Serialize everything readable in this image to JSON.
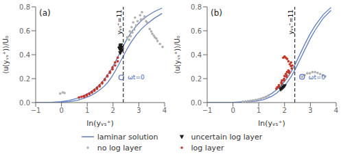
{
  "chart_data": [
    {
      "type": "scatter",
      "title": "(a)",
      "x_label": "ln(yᵥₛ⁺)",
      "y_label": "⟨u(yᵥₛ⁺)⟩/U₀",
      "xlim": [
        -1,
        4
      ],
      "ylim": [
        0,
        0.8
      ],
      "xticks": [
        {
          "value": -1,
          "label": "−1"
        },
        0,
        1,
        2,
        3,
        4
      ],
      "yticks": [
        {
          "value": 0,
          "label": "0.0"
        },
        0.2,
        0.4,
        0.6,
        0.8
      ],
      "grid": false,
      "legend": "bottom",
      "series": [
        {
          "name": "laminar solution",
          "type": "line",
          "color": "#5b7ec7",
          "line_style": "solid",
          "x": [
            -1.0,
            -0.5,
            0.0,
            0.3,
            0.6,
            0.9,
            1.1,
            1.3,
            1.5,
            1.65,
            1.8,
            1.95,
            2.1,
            2.25,
            2.4,
            2.55,
            2.7,
            2.9,
            3.1,
            3.3,
            3.6,
            3.9
          ],
          "values": [
            0.0,
            0.0,
            0.008,
            0.018,
            0.035,
            0.062,
            0.085,
            0.115,
            0.155,
            0.19,
            0.235,
            0.285,
            0.345,
            0.41,
            0.475,
            0.535,
            0.585,
            0.64,
            0.685,
            0.72,
            0.76,
            0.79
          ]
        },
        {
          "name": "laminar solution",
          "type": "line",
          "color": "#5b7ec7",
          "line_style": "solid",
          "x": [
            -1.0,
            -0.5,
            0.0,
            0.3,
            0.6,
            0.9,
            1.1,
            1.3,
            1.5,
            1.65,
            1.8,
            1.95,
            2.1,
            2.25,
            2.4,
            2.55,
            2.7,
            2.9,
            3.1,
            3.3,
            3.6,
            3.9
          ],
          "values": [
            0.0,
            0.0,
            0.003,
            0.008,
            0.018,
            0.038,
            0.055,
            0.078,
            0.108,
            0.135,
            0.17,
            0.215,
            0.27,
            0.33,
            0.39,
            0.45,
            0.505,
            0.565,
            0.615,
            0.655,
            0.705,
            0.745
          ]
        },
        {
          "name": "no log layer",
          "type": "scatter",
          "color": "#b0b0b0",
          "marker": "circle",
          "x": [
            -0.05,
            0.05,
            0.12,
            0.68,
            0.78,
            2.55,
            2.65,
            2.72,
            2.78,
            2.85,
            2.95,
            3.05,
            3.12,
            3.22,
            3.32,
            3.42,
            3.52,
            3.62,
            3.72,
            3.82,
            3.92,
            2.62,
            2.68,
            2.75,
            2.82,
            2.9,
            3.08,
            3.18,
            3.28,
            3.48,
            3.58,
            3.68
          ],
          "values": [
            0.075,
            0.085,
            0.08,
            0.042,
            0.048,
            0.545,
            0.595,
            0.63,
            0.67,
            0.71,
            0.68,
            0.73,
            0.755,
            0.72,
            0.67,
            0.615,
            0.575,
            0.545,
            0.515,
            0.49,
            0.465,
            0.525,
            0.555,
            0.585,
            0.61,
            0.645,
            0.695,
            0.7,
            0.68,
            0.595,
            0.56,
            0.535
          ]
        },
        {
          "name": "uncertain log layer",
          "type": "scatter",
          "color": "#1a1a1a",
          "marker": "triangle_down",
          "x": [
            2.28,
            2.3,
            2.26,
            2.32,
            2.28,
            2.25,
            2.35,
            2.3
          ],
          "values": [
            0.415,
            0.435,
            0.455,
            0.46,
            0.47,
            0.45,
            0.44,
            0.48
          ]
        },
        {
          "name": "log layer",
          "type": "scatter",
          "color": "#cc3322",
          "marker": "circle",
          "x": [
            0.68,
            0.78,
            0.88,
            0.98,
            1.08,
            1.18,
            1.28,
            1.38,
            1.48,
            1.58,
            1.68,
            1.78,
            1.88,
            1.98,
            2.08,
            2.18,
            2.28,
            2.18,
            2.08,
            1.98,
            1.88,
            1.78,
            1.68,
            1.58,
            1.48,
            1.38,
            1.28,
            1.18,
            1.08,
            0.98,
            0.88
          ],
          "values": [
            0.042,
            0.048,
            0.055,
            0.065,
            0.076,
            0.09,
            0.107,
            0.125,
            0.145,
            0.168,
            0.195,
            0.225,
            0.258,
            0.295,
            0.335,
            0.375,
            0.415,
            0.345,
            0.31,
            0.278,
            0.248,
            0.218,
            0.188,
            0.16,
            0.135,
            0.115,
            0.098,
            0.083,
            0.07,
            0.058,
            0.048
          ]
        }
      ],
      "annotations": [
        {
          "type": "vline",
          "x": 2.398,
          "text": "yᵥₛ⁺=11",
          "color": "#000000",
          "line_style": "dashed"
        },
        {
          "type": "point",
          "x": 2.32,
          "y": 0.21,
          "text": "ωt=0",
          "color": "#4466cc",
          "marker": "open_circle"
        }
      ]
    },
    {
      "type": "scatter",
      "title": "(b)",
      "x_label": "ln(yᵥₛ⁺)",
      "y_label": "⟨u(yᵥₛ⁺)⟩/U₀",
      "xlim": [
        -1,
        4
      ],
      "ylim": [
        0,
        0.8
      ],
      "xticks": [
        {
          "value": -1,
          "label": "−1"
        },
        0,
        1,
        2,
        3,
        4
      ],
      "yticks": [
        {
          "value": 0,
          "label": "0.0"
        },
        0.2,
        0.4,
        0.6,
        0.8
      ],
      "grid": false,
      "legend": "bottom",
      "series": [
        {
          "name": "laminar solution",
          "type": "line",
          "color": "#5b7ec7",
          "line_style": "solid",
          "x": [
            -1.0,
            -0.5,
            0.0,
            0.5,
            0.9,
            1.2,
            1.5,
            1.7,
            1.9,
            2.1,
            2.25,
            2.4,
            2.6,
            2.8,
            3.0,
            3.2,
            3.5,
            3.8
          ],
          "values": [
            0.0,
            0.0,
            0.002,
            0.008,
            0.022,
            0.042,
            0.075,
            0.108,
            0.15,
            0.205,
            0.255,
            0.315,
            0.405,
            0.495,
            0.578,
            0.648,
            0.735,
            0.795
          ]
        },
        {
          "name": "laminar solution",
          "type": "line",
          "color": "#5b7ec7",
          "line_style": "solid",
          "x": [
            -1.0,
            -0.5,
            0.0,
            0.5,
            0.9,
            1.2,
            1.5,
            1.7,
            1.9,
            2.1,
            2.25,
            2.4,
            2.6,
            2.8,
            3.0,
            3.2,
            3.5,
            3.8
          ],
          "values": [
            0.0,
            0.0,
            0.001,
            0.004,
            0.012,
            0.025,
            0.052,
            0.08,
            0.118,
            0.168,
            0.215,
            0.272,
            0.36,
            0.448,
            0.535,
            0.61,
            0.705,
            0.77
          ]
        },
        {
          "name": "no log layer",
          "type": "scatter",
          "color": "#b0b0b0",
          "marker": "circle",
          "x": [
            0.38,
            0.48,
            0.58,
            0.68,
            0.78,
            0.88,
            0.98,
            1.08,
            1.18,
            1.28,
            1.38,
            2.68,
            2.78,
            2.88,
            2.98,
            3.08,
            3.18,
            3.28,
            3.38,
            3.48,
            3.58
          ],
          "values": [
            0.008,
            0.01,
            0.012,
            0.015,
            0.018,
            0.022,
            0.027,
            0.033,
            0.04,
            0.048,
            0.058,
            0.215,
            0.23,
            0.245,
            0.245,
            0.255,
            0.255,
            0.248,
            0.238,
            0.228,
            0.218
          ]
        },
        {
          "name": "uncertain log layer",
          "type": "scatter",
          "color": "#1a1a1a",
          "marker": "triangle_down",
          "x": [
            1.85,
            1.9,
            1.95,
            2.0
          ],
          "values": [
            0.11,
            0.118,
            0.128,
            0.138
          ]
        },
        {
          "name": "log layer",
          "type": "scatter",
          "color": "#cc3322",
          "marker": "circle",
          "x": [
            1.68,
            1.78,
            1.88,
            1.98,
            2.08,
            2.18,
            2.28,
            2.18,
            2.08,
            1.98,
            1.88,
            1.78,
            1.72,
            2.05,
            2.15,
            2.25,
            2.1,
            2.0,
            1.9,
            2.2,
            2.15,
            2.1,
            2.05,
            2.0,
            1.95,
            2.25,
            2.3
          ],
          "values": [
            0.115,
            0.135,
            0.158,
            0.185,
            0.215,
            0.248,
            0.285,
            0.26,
            0.228,
            0.198,
            0.17,
            0.145,
            0.128,
            0.24,
            0.268,
            0.305,
            0.255,
            0.222,
            0.185,
            0.32,
            0.345,
            0.365,
            0.375,
            0.385,
            0.375,
            0.335,
            0.31
          ]
        }
      ],
      "annotations": [
        {
          "type": "vline",
          "x": 2.398,
          "text": "yᵥₛ⁺=11",
          "color": "#000000",
          "line_style": "dashed"
        },
        {
          "type": "point",
          "x": 2.68,
          "y": 0.215,
          "text": "ωt=0",
          "color": "#4466cc",
          "marker": "open_circle"
        }
      ]
    }
  ]
}
